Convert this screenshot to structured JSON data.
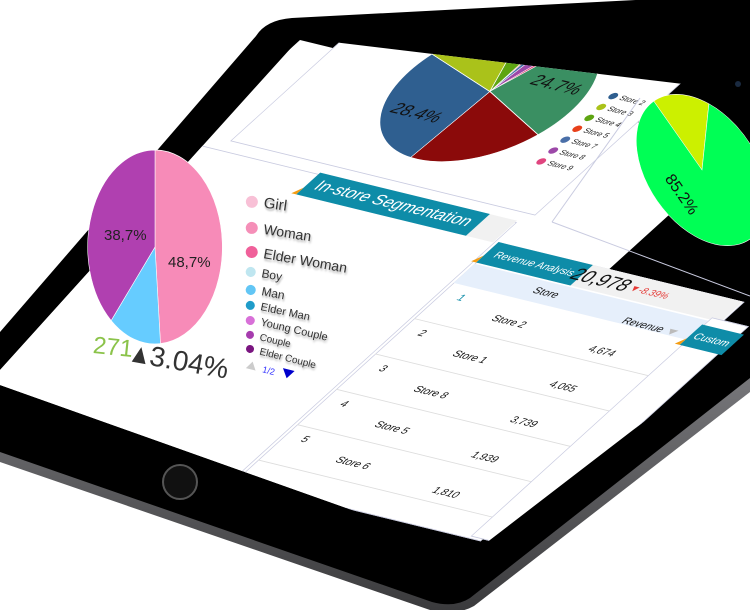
{
  "colors": {
    "accent": "#0e8ca8",
    "header_flag": "#f39c12",
    "negative": "#e53935",
    "positive_count": "#8bc34a"
  },
  "segmentation": {
    "title": "In-store Segmentation",
    "legend": [
      {
        "label": "Girl",
        "color": "#f8c0d6"
      },
      {
        "label": "Woman",
        "color": "#f58fb8"
      },
      {
        "label": "Elder Woman",
        "color": "#f0609a"
      },
      {
        "label": "Boy",
        "color": "#bfe6f0"
      },
      {
        "label": "Man",
        "color": "#62c6f5"
      },
      {
        "label": "Elder Man",
        "color": "#1f9cc9"
      },
      {
        "label": "Young Couple",
        "color": "#d870d8"
      },
      {
        "label": "Couple",
        "color": "#a63cae"
      },
      {
        "label": "Elder Couple",
        "color": "#7a1580"
      }
    ],
    "pager": "1/2",
    "pie": [
      {
        "label": "48,7%",
        "value": 48.7,
        "color": "#f78bb8"
      },
      {
        "label": "",
        "value": 12.6,
        "color": "#66ccff"
      },
      {
        "label": "38,7%",
        "value": 38.7,
        "color": "#b040b0"
      }
    ],
    "count": "271",
    "change": "3.04%",
    "change_icon": "triangle-up"
  },
  "store_pie": {
    "slices": [
      {
        "label": "",
        "value": 0.6,
        "color": "#e8401a"
      },
      {
        "label": "",
        "value": 1.5,
        "color": "#4a6fa8"
      },
      {
        "label": "",
        "value": 3.2,
        "color": "#9c48a8"
      },
      {
        "label": "",
        "value": 1.0,
        "color": "#e0457f"
      },
      {
        "label": "24.7%",
        "value": 24.7,
        "color": "#3a8f62"
      },
      {
        "label": "",
        "value": 20.0,
        "color": "#8b0a0a"
      },
      {
        "label": "28.4%",
        "value": 28.4,
        "color": "#2f5f90"
      },
      {
        "label": "",
        "value": 14.6,
        "color": "#aac21a"
      },
      {
        "label": "",
        "value": 6.0,
        "color": "#5ea512"
      }
    ],
    "legend": [
      {
        "label": "Store 2",
        "color": "#2f5f90"
      },
      {
        "label": "Store 3",
        "color": "#aac21a"
      },
      {
        "label": "Store 4",
        "color": "#5ea512"
      },
      {
        "label": "Store 5",
        "color": "#e8401a"
      },
      {
        "label": "Store 7",
        "color": "#4a6fa8"
      },
      {
        "label": "Store 8",
        "color": "#9c48a8"
      },
      {
        "label": "Store 9",
        "color": "#e0457f"
      }
    ]
  },
  "green_pie": {
    "slices": [
      {
        "label": "",
        "value": 14.8,
        "color": "#ccf000"
      },
      {
        "label": "85.2%",
        "value": 85.2,
        "color": "#00ff55"
      }
    ]
  },
  "revenue": {
    "title": "Revenue Analysis",
    "total": "20,978",
    "change": "▼-8.39%",
    "columns": {
      "store": "Store",
      "revenue": "Revenue",
      "sort_icon": "sort-desc"
    },
    "rows": [
      {
        "rank": "1",
        "store": "Store 2",
        "revenue": "4,674"
      },
      {
        "rank": "2",
        "store": "Store 1",
        "revenue": "4,065"
      },
      {
        "rank": "3",
        "store": "Store 8",
        "revenue": "3,739"
      },
      {
        "rank": "4",
        "store": "Store 5",
        "revenue": "1,939"
      },
      {
        "rank": "5",
        "store": "Store 6",
        "revenue": "1,810"
      }
    ]
  },
  "customer": {
    "title": "Custom"
  }
}
